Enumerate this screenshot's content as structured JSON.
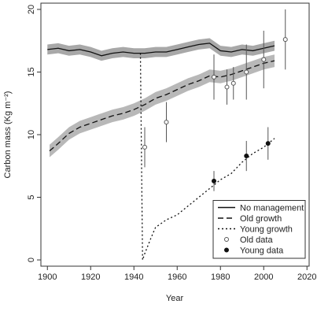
{
  "chart_data": {
    "type": "line",
    "xlabel": "Year",
    "ylabel": "Carbon mass (Kg m⁻²)",
    "xlim": [
      1897,
      2021
    ],
    "ylim": [
      -0.5,
      20.5
    ],
    "xticks": [
      1900,
      1920,
      1940,
      1960,
      1980,
      2000,
      2020
    ],
    "yticks": [
      0,
      5,
      10,
      15,
      20
    ],
    "legend": "bottom-right",
    "series": [
      {
        "name": "No management",
        "color": "#111111",
        "dash": "solid",
        "band_color": "#a8a8a8",
        "x": [
          1900,
          1905,
          1910,
          1915,
          1920,
          1925,
          1930,
          1935,
          1940,
          1945,
          1950,
          1955,
          1960,
          1965,
          1970,
          1975,
          1980,
          1985,
          1990,
          1995,
          2000,
          2005
        ],
        "values": [
          16.8,
          16.9,
          16.7,
          16.8,
          16.6,
          16.3,
          16.5,
          16.6,
          16.5,
          16.5,
          16.6,
          16.6,
          16.8,
          17.0,
          17.2,
          17.3,
          16.7,
          16.6,
          16.8,
          16.7,
          16.9,
          17.1
        ],
        "lower": [
          16.4,
          16.5,
          16.3,
          16.4,
          16.2,
          15.9,
          16.1,
          16.2,
          16.1,
          16.1,
          16.2,
          16.2,
          16.4,
          16.6,
          16.8,
          16.9,
          16.3,
          16.2,
          16.4,
          16.3,
          16.5,
          16.7
        ],
        "upper": [
          17.2,
          17.3,
          17.1,
          17.2,
          17.0,
          16.7,
          16.9,
          17.0,
          16.9,
          16.9,
          17.0,
          17.0,
          17.2,
          17.4,
          17.6,
          17.7,
          17.1,
          17.0,
          17.2,
          17.1,
          17.3,
          17.5
        ]
      },
      {
        "name": "Old growth",
        "color": "#111111",
        "dash": "dashed",
        "band_color": "#b8b8b8",
        "x": [
          1901,
          1905,
          1910,
          1915,
          1920,
          1925,
          1930,
          1935,
          1940,
          1945,
          1950,
          1955,
          1960,
          1965,
          1970,
          1975,
          1980,
          1985,
          1990,
          1995,
          2000,
          2005
        ],
        "values": [
          8.7,
          9.3,
          10.1,
          10.6,
          10.9,
          11.2,
          11.5,
          11.7,
          12.0,
          12.4,
          12.9,
          13.2,
          13.6,
          14.0,
          14.3,
          14.7,
          14.6,
          14.8,
          15.1,
          15.4,
          15.7,
          15.9
        ],
        "lower": [
          8.2,
          8.8,
          9.6,
          10.1,
          10.4,
          10.7,
          11.0,
          11.2,
          11.5,
          11.9,
          12.4,
          12.7,
          13.1,
          13.5,
          13.8,
          14.2,
          14.1,
          14.3,
          14.6,
          14.9,
          15.2,
          15.4
        ],
        "upper": [
          9.2,
          9.8,
          10.6,
          11.1,
          11.4,
          11.7,
          12.0,
          12.2,
          12.5,
          12.9,
          13.4,
          13.7,
          14.1,
          14.5,
          14.8,
          15.2,
          15.1,
          15.3,
          15.6,
          15.9,
          16.2,
          16.4
        ]
      },
      {
        "name": "Young growth",
        "color": "#111111",
        "dash": "dotted",
        "x": [
          1943,
          1944,
          1945,
          1948,
          1950,
          1955,
          1960,
          1965,
          1970,
          1975,
          1980,
          1985,
          1990,
          1995,
          2000,
          2005
        ],
        "values": [
          16.5,
          0,
          0.5,
          1.8,
          2.6,
          3.2,
          3.6,
          4.3,
          5.0,
          5.7,
          6.4,
          6.9,
          7.8,
          8.5,
          9.0,
          9.7
        ]
      }
    ],
    "points": [
      {
        "name": "Old data",
        "marker": "open",
        "color": "#555555",
        "x": [
          1945,
          1955,
          1977,
          1983,
          1986,
          1992,
          2000,
          2010
        ],
        "values": [
          9.0,
          11.0,
          14.6,
          13.8,
          14.1,
          15.0,
          16.0,
          17.6
        ],
        "errors": [
          1.6,
          1.6,
          1.8,
          1.4,
          1.3,
          2.2,
          2.3,
          2.4
        ]
      },
      {
        "name": "Young data",
        "marker": "filled",
        "color": "#111111",
        "x": [
          1977,
          1992,
          2002
        ],
        "values": [
          6.3,
          8.3,
          9.3
        ],
        "errors": [
          0.8,
          1.2,
          1.3
        ]
      }
    ]
  }
}
